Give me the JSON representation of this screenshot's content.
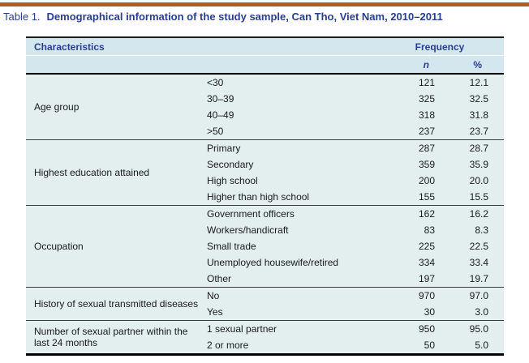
{
  "caption": {
    "prefix": "Table 1.",
    "title": "Demographical information of the study sample, Can Tho, Viet Nam, 2010–2011"
  },
  "table": {
    "header": {
      "characteristics": "Characteristics",
      "frequency": "Frequency",
      "n": "n",
      "percent": "%"
    },
    "sections": [
      {
        "id": "age-group",
        "label": "Age group",
        "rows": [
          {
            "category": "<30",
            "n": "121",
            "percent": "12.1"
          },
          {
            "category": "30–39",
            "n": "325",
            "percent": "32.5"
          },
          {
            "category": "40–49",
            "n": "318",
            "percent": "31.8"
          },
          {
            "category": ">50",
            "n": "237",
            "percent": "23.7"
          }
        ]
      },
      {
        "id": "highest-education",
        "label": "Highest education attained",
        "rows": [
          {
            "category": "Primary",
            "n": "287",
            "percent": "28.7"
          },
          {
            "category": "Secondary",
            "n": "359",
            "percent": "35.9"
          },
          {
            "category": "High school",
            "n": "200",
            "percent": "20.0"
          },
          {
            "category": "Higher than high school",
            "n": "155",
            "percent": "15.5"
          }
        ]
      },
      {
        "id": "occupation",
        "label": "Occupation",
        "rows": [
          {
            "category": "Government officers",
            "n": "162",
            "percent": "16.2"
          },
          {
            "category": "Workers/handicraft",
            "n": "83",
            "percent": "8.3"
          },
          {
            "category": "Small trade",
            "n": "225",
            "percent": "22.5"
          },
          {
            "category": "Unemployed housewife/retired",
            "n": "334",
            "percent": "33.4"
          },
          {
            "category": "Other",
            "n": "197",
            "percent": "19.7"
          }
        ]
      },
      {
        "id": "std-history",
        "label": "History of sexual transmitted diseases",
        "rows": [
          {
            "category": "No",
            "n": "970",
            "percent": "97.0"
          },
          {
            "category": "Yes",
            "n": "30",
            "percent": "3.0"
          }
        ]
      },
      {
        "id": "sexual-partners",
        "label": "Number of sexual partner within the last 24 months",
        "rows": [
          {
            "category": "1 sexual partner",
            "n": "950",
            "percent": "95.0"
          },
          {
            "category": "2 or more",
            "n": "50",
            "percent": "5.0"
          }
        ]
      }
    ]
  },
  "colors": {
    "accent_rule": "#b05e1b",
    "header_bg": "#d5e7ee",
    "body_bg": "#e3efef",
    "heading_text": "#283f8f",
    "body_text": "#1a1a1a"
  }
}
